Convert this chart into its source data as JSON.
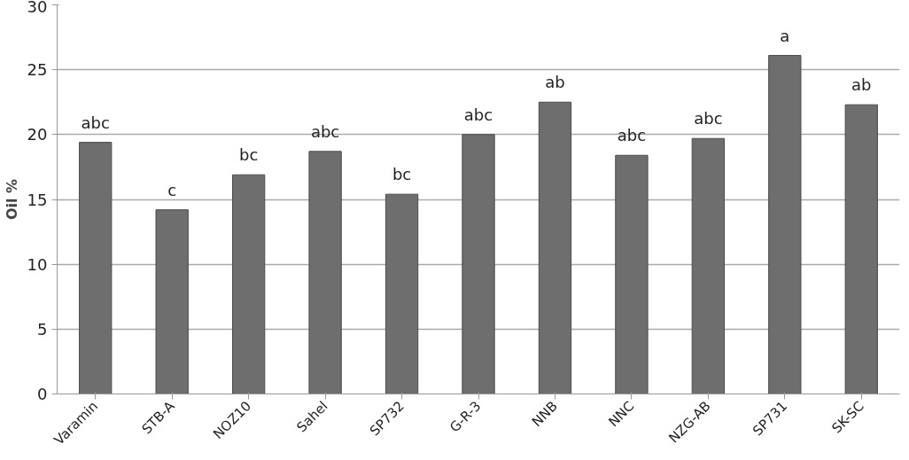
{
  "chart_data": {
    "type": "bar",
    "ylabel": "Oil %",
    "categories": [
      "Varamin",
      "STB-A",
      "NOZ10",
      "Sahel",
      "SP732",
      "G-R-3",
      "NNB",
      "NNC",
      "NZG-AB",
      "SP731",
      "SK-SC"
    ],
    "values": [
      19.4,
      14.2,
      16.9,
      18.7,
      15.4,
      20.0,
      22.5,
      18.4,
      19.7,
      26.1,
      22.3
    ],
    "color": "#6e6e6e",
    "ylim": [
      0,
      30
    ],
    "yticks": [
      0,
      5,
      10,
      15,
      20,
      25,
      30
    ],
    "grid": "y",
    "annotations": [
      {
        "text": "abc",
        "x": "Varamin",
        "y": 19.4
      },
      {
        "text": "c",
        "x": "STB-A",
        "y": 14.2
      },
      {
        "text": "bc",
        "x": "NOZ10",
        "y": 16.9
      },
      {
        "text": "abc",
        "x": "Sahel",
        "y": 18.7
      },
      {
        "text": "bc",
        "x": "SP732",
        "y": 15.4
      },
      {
        "text": "abc",
        "x": "G-R-3",
        "y": 20.0
      },
      {
        "text": "ab",
        "x": "NNB",
        "y": 22.5
      },
      {
        "text": "abc",
        "x": "NNC",
        "y": 18.4
      },
      {
        "text": "abc",
        "x": "NZG-AB",
        "y": 19.7
      },
      {
        "text": "a",
        "x": "SP731",
        "y": 26.1
      },
      {
        "text": "ab",
        "x": "SK-SC",
        "y": 22.3
      }
    ]
  }
}
